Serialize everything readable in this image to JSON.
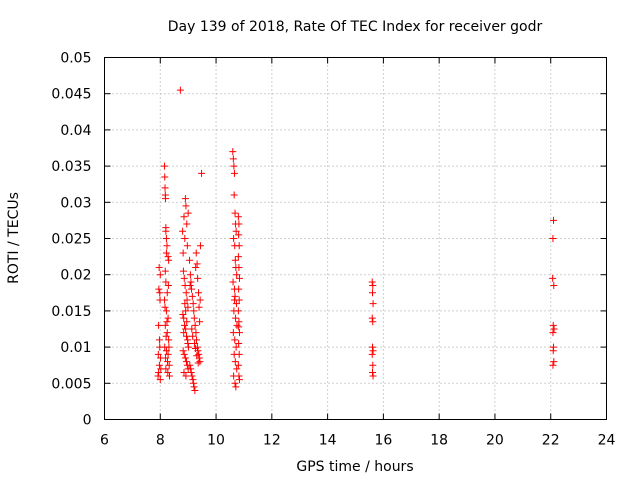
{
  "chart_data": {
    "type": "scatter",
    "title": "Day 139 of 2018, Rate Of TEC Index for receiver godr",
    "xlabel": "GPS time / hours",
    "ylabel": "ROTI / TECUs",
    "xlim": [
      6,
      24
    ],
    "ylim": [
      0,
      0.05
    ],
    "xticks": [
      "6",
      "8",
      "10",
      "12",
      "14",
      "16",
      "18",
      "20",
      "22",
      "24"
    ],
    "yticks": [
      "0",
      "0.005",
      "0.01",
      "0.015",
      "0.02",
      "0.025",
      "0.03",
      "0.035",
      "0.04",
      "0.045",
      "0.05"
    ],
    "grid": true,
    "marker": "+",
    "color": "#ff0000",
    "series": [
      {
        "name": "ROTI",
        "points": [
          [
            7.92,
            0.006
          ],
          [
            7.93,
            0.009
          ],
          [
            7.94,
            0.013
          ],
          [
            7.95,
            0.018
          ],
          [
            7.96,
            0.021
          ],
          [
            7.97,
            0.0075
          ],
          [
            7.98,
            0.01
          ],
          [
            7.99,
            0.0165
          ],
          [
            8.0,
            0.0055
          ],
          [
            8.0,
            0.02
          ],
          [
            8.01,
            0.0085
          ],
          [
            8.02,
            0.007
          ],
          [
            7.94,
            0.0065
          ],
          [
            7.97,
            0.011
          ],
          [
            7.98,
            0.0175
          ],
          [
            8.15,
            0.035
          ],
          [
            8.16,
            0.0335
          ],
          [
            8.17,
            0.032
          ],
          [
            8.18,
            0.031
          ],
          [
            8.19,
            0.0305
          ],
          [
            8.2,
            0.026
          ],
          [
            8.2,
            0.0265
          ],
          [
            8.22,
            0.025
          ],
          [
            8.24,
            0.024
          ],
          [
            8.22,
            0.023
          ],
          [
            8.28,
            0.0225
          ],
          [
            8.3,
            0.022
          ],
          [
            8.18,
            0.0205
          ],
          [
            8.2,
            0.019
          ],
          [
            8.25,
            0.0175
          ],
          [
            8.15,
            0.0165
          ],
          [
            8.22,
            0.015
          ],
          [
            8.28,
            0.014
          ],
          [
            8.18,
            0.013
          ],
          [
            8.25,
            0.012
          ],
          [
            8.3,
            0.011
          ],
          [
            8.16,
            0.01
          ],
          [
            8.22,
            0.0095
          ],
          [
            8.28,
            0.009
          ],
          [
            8.19,
            0.0085
          ],
          [
            8.26,
            0.008
          ],
          [
            8.32,
            0.0075
          ],
          [
            8.2,
            0.007
          ],
          [
            8.27,
            0.0065
          ],
          [
            8.33,
            0.006
          ],
          [
            8.24,
            0.0135
          ],
          [
            8.17,
            0.0155
          ],
          [
            8.29,
            0.0185
          ],
          [
            8.21,
            0.0115
          ],
          [
            8.31,
            0.01
          ],
          [
            8.72,
            0.0455
          ],
          [
            8.8,
            0.026
          ],
          [
            8.82,
            0.023
          ],
          [
            8.85,
            0.028
          ],
          [
            8.88,
            0.025
          ],
          [
            8.9,
            0.0305
          ],
          [
            8.92,
            0.0295
          ],
          [
            8.95,
            0.027
          ],
          [
            8.97,
            0.024
          ],
          [
            9.0,
            0.0285
          ],
          [
            8.83,
            0.0205
          ],
          [
            8.86,
            0.0195
          ],
          [
            8.89,
            0.0185
          ],
          [
            8.93,
            0.0175
          ],
          [
            8.96,
            0.0165
          ],
          [
            8.99,
            0.0155
          ],
          [
            8.81,
            0.0145
          ],
          [
            8.84,
            0.014
          ],
          [
            8.87,
            0.013
          ],
          [
            8.91,
            0.0125
          ],
          [
            8.94,
            0.0115
          ],
          [
            8.98,
            0.011
          ],
          [
            9.01,
            0.01
          ],
          [
            8.82,
            0.0095
          ],
          [
            8.86,
            0.009
          ],
          [
            8.9,
            0.0085
          ],
          [
            8.94,
            0.008
          ],
          [
            8.97,
            0.0075
          ],
          [
            9.0,
            0.007
          ],
          [
            8.85,
            0.0065
          ],
          [
            8.92,
            0.006
          ],
          [
            8.88,
            0.016
          ],
          [
            8.95,
            0.0135
          ],
          [
            8.84,
            0.012
          ],
          [
            8.99,
            0.0105
          ],
          [
            8.91,
            0.015
          ],
          [
            9.05,
            0.022
          ],
          [
            9.08,
            0.02
          ],
          [
            9.1,
            0.019
          ],
          [
            9.12,
            0.018
          ],
          [
            9.15,
            0.017
          ],
          [
            9.18,
            0.016
          ],
          [
            9.2,
            0.015
          ],
          [
            9.22,
            0.014
          ],
          [
            9.25,
            0.013
          ],
          [
            9.28,
            0.012
          ],
          [
            9.3,
            0.011
          ],
          [
            9.33,
            0.01
          ],
          [
            9.35,
            0.0095
          ],
          [
            9.38,
            0.009
          ],
          [
            9.4,
            0.0085
          ],
          [
            9.42,
            0.008
          ],
          [
            9.06,
            0.0075
          ],
          [
            9.09,
            0.007
          ],
          [
            9.11,
            0.0065
          ],
          [
            9.14,
            0.006
          ],
          [
            9.17,
            0.0055
          ],
          [
            9.19,
            0.005
          ],
          [
            9.21,
            0.0045
          ],
          [
            9.24,
            0.004
          ],
          [
            9.27,
            0.021
          ],
          [
            9.29,
            0.023
          ],
          [
            9.32,
            0.0215
          ],
          [
            9.34,
            0.0195
          ],
          [
            9.37,
            0.0175
          ],
          [
            9.39,
            0.0155
          ],
          [
            9.41,
            0.0135
          ],
          [
            9.13,
            0.0125
          ],
          [
            9.16,
            0.0115
          ],
          [
            9.23,
            0.0105
          ],
          [
            9.26,
            0.0098
          ],
          [
            9.31,
            0.0088
          ],
          [
            9.36,
            0.0078
          ],
          [
            9.07,
            0.0185
          ],
          [
            9.44,
            0.024
          ],
          [
            9.43,
            0.0165
          ],
          [
            9.48,
            0.034
          ],
          [
            10.6,
            0.037
          ],
          [
            10.62,
            0.036
          ],
          [
            10.64,
            0.035
          ],
          [
            10.66,
            0.034
          ],
          [
            10.65,
            0.031
          ],
          [
            10.68,
            0.0285
          ],
          [
            10.7,
            0.027
          ],
          [
            10.72,
            0.026
          ],
          [
            10.63,
            0.025
          ],
          [
            10.67,
            0.024
          ],
          [
            10.69,
            0.022
          ],
          [
            10.71,
            0.021
          ],
          [
            10.74,
            0.02
          ],
          [
            10.61,
            0.019
          ],
          [
            10.66,
            0.018
          ],
          [
            10.68,
            0.017
          ],
          [
            10.73,
            0.016
          ],
          [
            10.64,
            0.015
          ],
          [
            10.7,
            0.014
          ],
          [
            10.75,
            0.013
          ],
          [
            10.62,
            0.012
          ],
          [
            10.67,
            0.011
          ],
          [
            10.72,
            0.01
          ],
          [
            10.65,
            0.009
          ],
          [
            10.69,
            0.008
          ],
          [
            10.74,
            0.007
          ],
          [
            10.63,
            0.006
          ],
          [
            10.68,
            0.005
          ],
          [
            10.71,
            0.0045
          ],
          [
            10.66,
            0.0165
          ],
          [
            10.8,
            0.028
          ],
          [
            10.82,
            0.027
          ],
          [
            10.81,
            0.0255
          ],
          [
            10.83,
            0.024
          ],
          [
            10.8,
            0.0225
          ],
          [
            10.82,
            0.021
          ],
          [
            10.84,
            0.0195
          ],
          [
            10.81,
            0.018
          ],
          [
            10.83,
            0.0165
          ],
          [
            10.8,
            0.015
          ],
          [
            10.82,
            0.0135
          ],
          [
            10.84,
            0.012
          ],
          [
            10.81,
            0.0105
          ],
          [
            10.83,
            0.009
          ],
          [
            10.8,
            0.0075
          ],
          [
            10.82,
            0.006
          ],
          [
            10.84,
            0.0055
          ],
          [
            10.81,
            0.0128
          ],
          [
            15.6,
            0.019
          ],
          [
            15.62,
            0.0185
          ],
          [
            15.61,
            0.0175
          ],
          [
            15.63,
            0.016
          ],
          [
            15.6,
            0.014
          ],
          [
            15.62,
            0.0135
          ],
          [
            15.61,
            0.01
          ],
          [
            15.63,
            0.0095
          ],
          [
            15.6,
            0.009
          ],
          [
            15.62,
            0.0075
          ],
          [
            15.61,
            0.0065
          ],
          [
            15.63,
            0.006
          ],
          [
            22.1,
            0.0275
          ],
          [
            22.08,
            0.025
          ],
          [
            22.07,
            0.0195
          ],
          [
            22.11,
            0.0185
          ],
          [
            22.09,
            0.013
          ],
          [
            22.12,
            0.0125
          ],
          [
            22.08,
            0.012
          ],
          [
            22.1,
            0.01
          ],
          [
            22.09,
            0.0095
          ],
          [
            22.11,
            0.008
          ],
          [
            22.08,
            0.0075
          ]
        ]
      }
    ]
  }
}
